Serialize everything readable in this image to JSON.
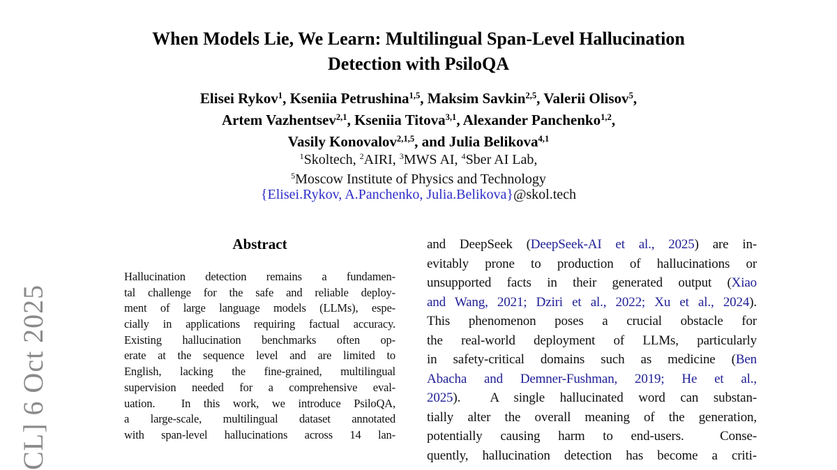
{
  "page": {
    "background": "#ffffff",
    "text_color": "#111111",
    "citation_link_color": "#1e1e96",
    "email_link_color": "#2d2dc8",
    "banner_color": "#8a8a8a"
  },
  "banner": {
    "text": "CL] 6 Oct 2025"
  },
  "title": {
    "line1": "When Models Lie, We Learn: Multilingual Span-Level Hallucination",
    "line2": "Detection with PsiloQA"
  },
  "authors": {
    "lines": [
      [
        {
          "t": "Elisei Rykov"
        },
        {
          "t": "1",
          "sup": true
        },
        {
          "t": ", Kseniia Petrushina"
        },
        {
          "t": "1,5",
          "sup": true
        },
        {
          "t": ", Maksim Savkin"
        },
        {
          "t": "2,5",
          "sup": true
        },
        {
          "t": ", Valerii Olisov"
        },
        {
          "t": "5",
          "sup": true
        },
        {
          "t": ","
        }
      ],
      [
        {
          "t": "Artem Vazhentsev"
        },
        {
          "t": "2,1",
          "sup": true
        },
        {
          "t": ", Kseniia Titova"
        },
        {
          "t": "3,1",
          "sup": true
        },
        {
          "t": ", Alexander Panchenko"
        },
        {
          "t": "1,2",
          "sup": true
        },
        {
          "t": ","
        }
      ],
      [
        {
          "t": "Vasily Konovalov"
        },
        {
          "t": "2,1,5",
          "sup": true
        },
        {
          "t": ", and Julia Belikova"
        },
        {
          "t": "4,1",
          "sup": true
        }
      ]
    ]
  },
  "affiliations": {
    "lines": [
      [
        {
          "t": "1",
          "sup": true
        },
        {
          "t": "Skoltech, "
        },
        {
          "t": "2",
          "sup": true
        },
        {
          "t": "AIRI, "
        },
        {
          "t": "3",
          "sup": true
        },
        {
          "t": "MWS AI, "
        },
        {
          "t": "4",
          "sup": true
        },
        {
          "t": "Sber AI Lab,"
        }
      ],
      [
        {
          "t": "5",
          "sup": true
        },
        {
          "t": "Moscow Institute of Physics and Technology"
        }
      ]
    ]
  },
  "email": {
    "segments": [
      {
        "t": "{Elisei.Rykov, A.Panchenko, Julia.Belikova}",
        "c": "mail"
      },
      {
        "t": "@skol.tech"
      }
    ]
  },
  "abstract": {
    "heading": "Abstract",
    "lines": [
      "Hallucination detection remains a fundamen-",
      "tal challenge for the safe and reliable deploy-",
      "ment of large language models (LLMs), espe-",
      "cially in applications requiring factual accuracy.",
      "Existing hallucination benchmarks often op-",
      "erate at the sequence level and are limited to",
      "English, lacking the fine-grained, multilingual",
      "supervision needed for a comprehensive eval-",
      "uation.  In this work, we introduce PsiloQA,",
      "a large-scale, multilingual dataset annotated",
      "with span-level hallucinations across 14 lan-"
    ]
  },
  "intro_column": {
    "lines": [
      [
        {
          "t": "and DeepSeek ("
        },
        {
          "t": "DeepSeek-AI et al., 2025",
          "c": "cite"
        },
        {
          "t": ") are in-"
        }
      ],
      [
        {
          "t": "evitably prone to production of hallucinations or"
        }
      ],
      [
        {
          "t": "unsupported facts in their generated output ("
        },
        {
          "t": "Xiao",
          "c": "cite"
        }
      ],
      [
        {
          "t": "and Wang, 2021; Dziri et al., 2022; Xu et al., 2024",
          "c": "cite"
        },
        {
          "t": ")."
        }
      ],
      [
        {
          "t": "This phenomenon poses a crucial obstacle for"
        }
      ],
      [
        {
          "t": "the real-world deployment of LLMs, particularly"
        }
      ],
      [
        {
          "t": "in safety-critical domains such as medicine ("
        },
        {
          "t": "Ben",
          "c": "cite"
        }
      ],
      [
        {
          "t": "Abacha and Demner-Fushman, 2019; He et al.,",
          "c": "cite"
        }
      ],
      [
        {
          "t": "2025",
          "c": "cite"
        },
        {
          "t": ").  A single hallucinated word can substan-"
        }
      ],
      [
        {
          "t": "tially alter the overall meaning of the generation,"
        }
      ],
      [
        {
          "t": "potentially causing harm to end-users.  Conse-"
        }
      ],
      [
        {
          "t": "quently, hallucination detection has become a criti-"
        }
      ]
    ]
  }
}
